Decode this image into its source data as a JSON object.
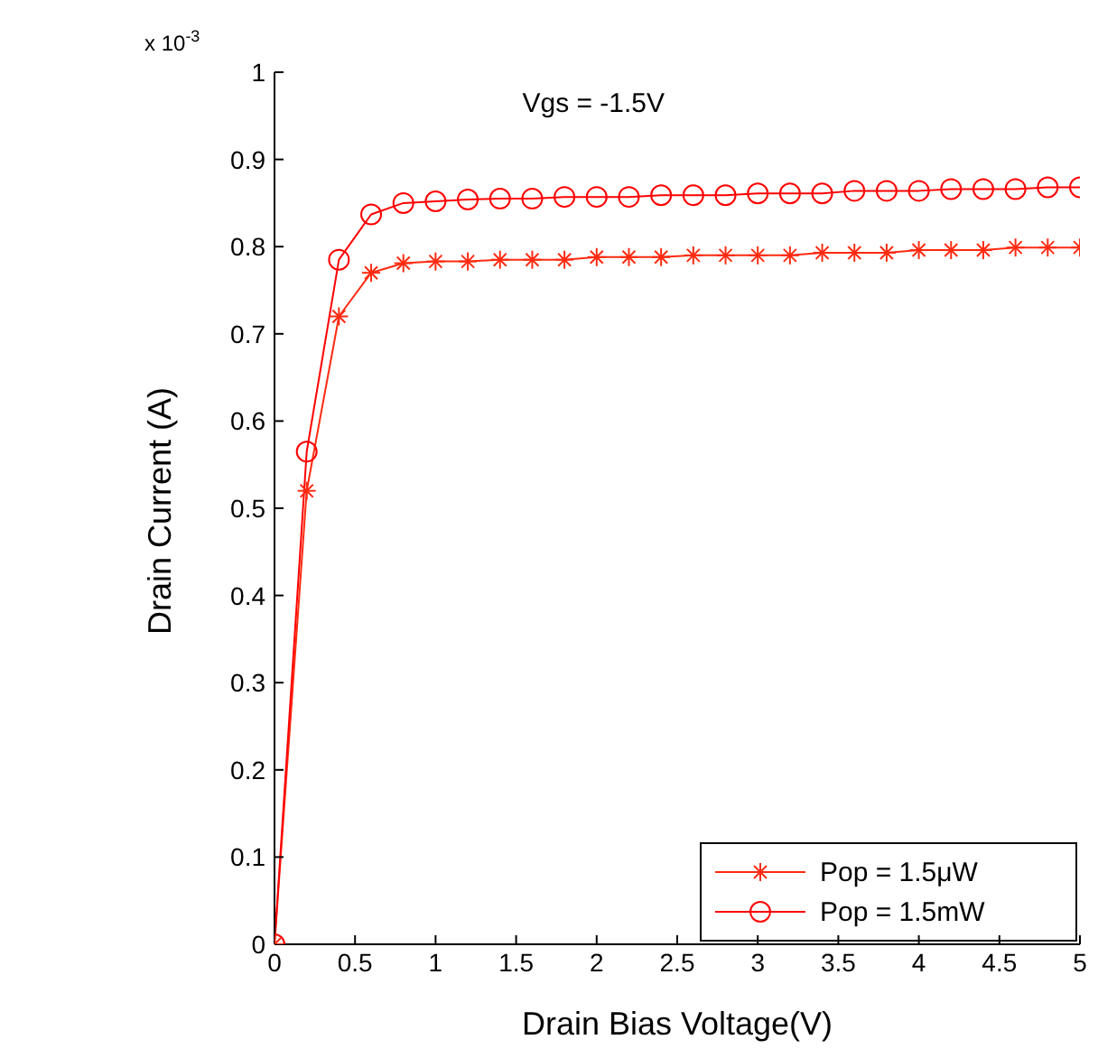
{
  "chart_data": {
    "type": "line",
    "xlabel": "Drain Bias Voltage(V)",
    "ylabel": "Drain Current (A)",
    "annotations": [
      "Vgs = -1.5V",
      "x 10$^{-3}$"
    ],
    "x": [
      0,
      0.2,
      0.4,
      0.6,
      0.8,
      1,
      1.2,
      1.4,
      1.6,
      1.8,
      2,
      2.2,
      2.4,
      2.6,
      2.8,
      3,
      3.2,
      3.4,
      3.6,
      3.8,
      4,
      4.2,
      4.4,
      4.6,
      4.8,
      5
    ],
    "series": [
      {
        "name": "Pop = 1.5μW",
        "color": "#ff2a10",
        "marker": "cross",
        "values": [
          0,
          0.52,
          0.72,
          0.77,
          0.781,
          0.783,
          0.783,
          0.785,
          0.785,
          0.785,
          0.788,
          0.788,
          0.788,
          0.79,
          0.79,
          0.79,
          0.79,
          0.793,
          0.793,
          0.793,
          0.796,
          0.796,
          0.796,
          0.799,
          0.799,
          0.799
        ]
      },
      {
        "name": "Pop = 1.5mW",
        "color": "#ff0000",
        "marker": "circle",
        "values": [
          0,
          0.565,
          0.785,
          0.837,
          0.85,
          0.852,
          0.854,
          0.855,
          0.855,
          0.857,
          0.857,
          0.857,
          0.859,
          0.859,
          0.859,
          0.861,
          0.861,
          0.861,
          0.864,
          0.864,
          0.864,
          0.866,
          0.866,
          0.866,
          0.868,
          0.868
        ]
      }
    ],
    "xlim": [
      0,
      5
    ],
    "xticks": [
      0,
      0.5,
      1,
      1.5,
      2,
      2.5,
      3,
      3.5,
      4,
      4.5,
      5
    ],
    "ylim": [
      0,
      1
    ],
    "yticks": [
      0,
      0.1,
      0.2,
      0.3,
      0.4,
      0.5,
      0.6,
      0.7,
      0.8,
      0.9,
      1
    ],
    "grid": false,
    "legend": "bottom right",
    "line_style": "solid"
  }
}
